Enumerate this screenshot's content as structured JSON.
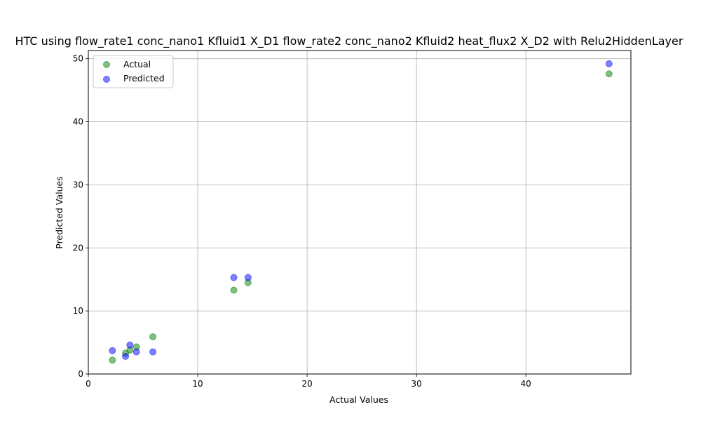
{
  "chart_data": {
    "type": "scatter",
    "title": "HTC using flow_rate1 conc_nano1 Kfluid1 X_D1 flow_rate2 conc_nano2 Kfluid2 heat_flux2 X_D2 with Relu2HiddenLayer",
    "xlabel": "Actual Values",
    "ylabel": "Predicted Values",
    "xlim": [
      0,
      49.6
    ],
    "ylim": [
      0,
      51.3
    ],
    "xticks": [
      0,
      10,
      20,
      30,
      40
    ],
    "yticks": [
      0,
      10,
      20,
      30,
      40,
      50
    ],
    "grid": true,
    "legend_position": "upper-left",
    "series": [
      {
        "name": "Actual",
        "color": "#008000",
        "alpha": 0.5,
        "points": [
          [
            2.2,
            2.2
          ],
          [
            3.4,
            3.3
          ],
          [
            3.8,
            3.8
          ],
          [
            4.4,
            4.3
          ],
          [
            5.9,
            5.9
          ],
          [
            13.3,
            13.3
          ],
          [
            14.6,
            14.5
          ],
          [
            47.6,
            47.6
          ]
        ]
      },
      {
        "name": "Predicted",
        "color": "#0000ff",
        "alpha": 0.5,
        "points": [
          [
            2.2,
            3.7
          ],
          [
            3.4,
            2.8
          ],
          [
            3.8,
            4.6
          ],
          [
            4.4,
            3.5
          ],
          [
            5.9,
            3.5
          ],
          [
            13.3,
            15.3
          ],
          [
            14.6,
            15.3
          ],
          [
            47.6,
            49.2
          ]
        ]
      }
    ]
  }
}
